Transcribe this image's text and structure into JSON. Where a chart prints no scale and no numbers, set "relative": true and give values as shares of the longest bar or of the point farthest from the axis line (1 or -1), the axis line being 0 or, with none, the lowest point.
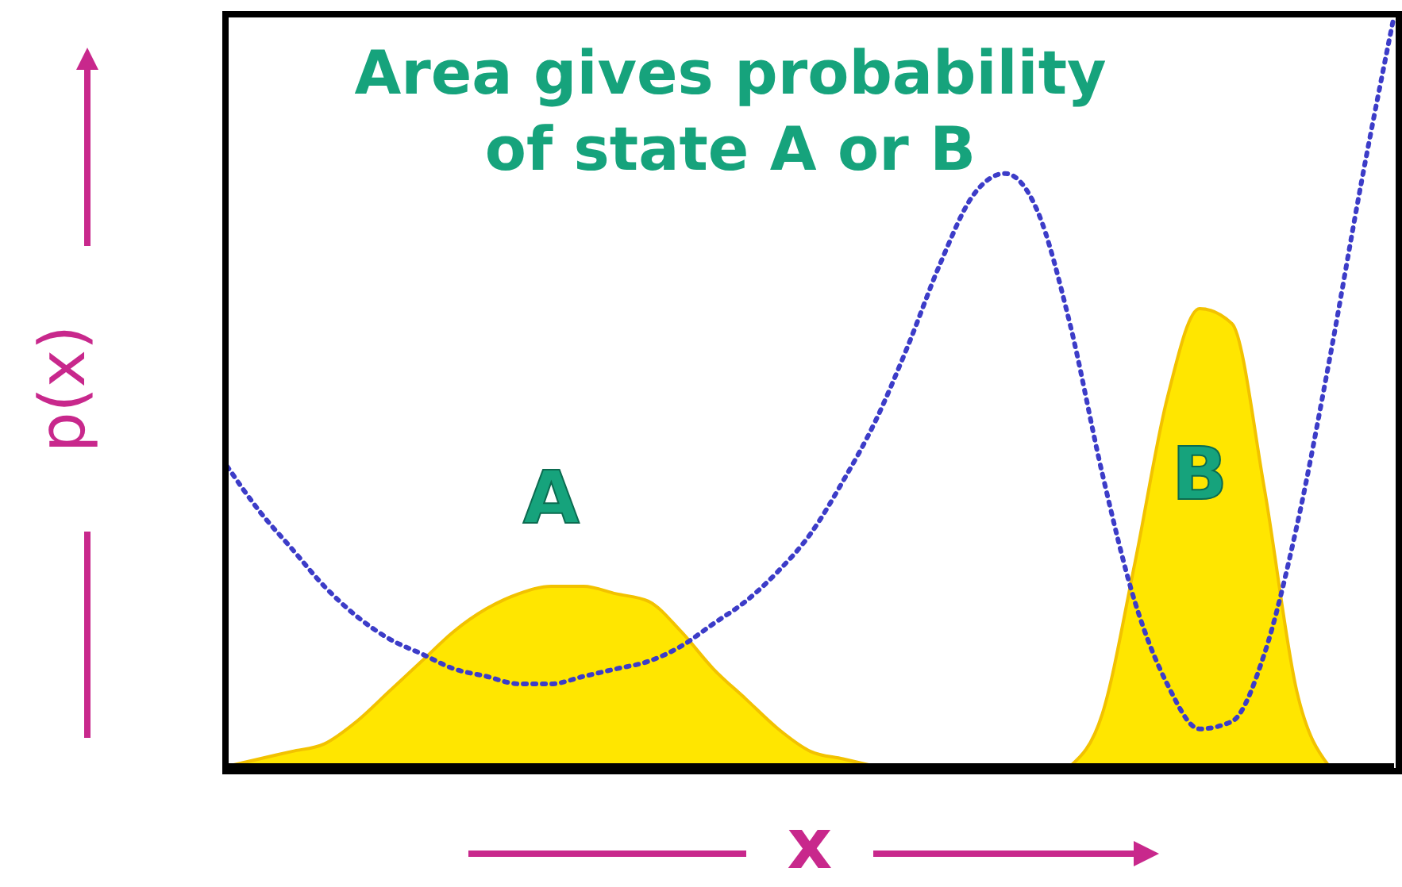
{
  "chart_data": {
    "type": "area",
    "title": "Area gives probability of state A or B",
    "xlabel": "x",
    "ylabel": "p(x)",
    "relative": true,
    "categories": [
      null,
      null,
      null,
      null,
      null,
      null,
      null,
      null,
      null,
      null,
      null,
      null,
      null,
      null,
      null,
      null,
      null,
      null,
      null,
      null,
      null,
      null,
      null,
      null,
      null,
      null,
      null,
      null,
      null,
      null,
      null,
      null,
      null,
      null,
      null,
      null,
      null
    ],
    "series": [
      {
        "type": "line",
        "color": "#3c3cc8",
        "line_style": "dotted",
        "marker": "none",
        "values": [
          0.4,
          0.34,
          0.29,
          0.24,
          0.2,
          0.17,
          0.15,
          0.13,
          0.12,
          0.11,
          0.11,
          0.12,
          0.13,
          0.14,
          0.16,
          0.19,
          0.22,
          0.26,
          0.31,
          0.38,
          0.46,
          0.56,
          0.67,
          0.76,
          0.79,
          0.74,
          0.59,
          0.39,
          0.22,
          0.11,
          0.05,
          0.06,
          0.15,
          0.32,
          0.54,
          0.78,
          1
        ]
      },
      {
        "name": "A",
        "color": "#ffe600",
        "values": [
          0,
          0.01,
          0.02,
          0.03,
          0.06,
          0.1,
          0.14,
          0.18,
          0.21,
          0.23,
          0.24,
          0.24,
          0.23,
          0.22,
          0.18,
          0.13,
          0.09,
          0.05,
          0.02,
          0.01,
          0,
          null,
          null,
          null,
          null,
          null,
          null,
          null,
          null,
          null,
          null,
          null,
          null,
          null,
          null,
          null,
          null
        ]
      },
      {
        "name": "B",
        "color": "#ffe600",
        "values": [
          null,
          null,
          null,
          null,
          null,
          null,
          null,
          null,
          null,
          null,
          null,
          null,
          null,
          null,
          null,
          null,
          null,
          null,
          null,
          null,
          null,
          null,
          null,
          null,
          null,
          null,
          0,
          0.07,
          0.27,
          0.49,
          0.61,
          0.59,
          0.37,
          0.1,
          0,
          null,
          null
        ]
      }
    ],
    "legend": false,
    "grid": false
  }
}
